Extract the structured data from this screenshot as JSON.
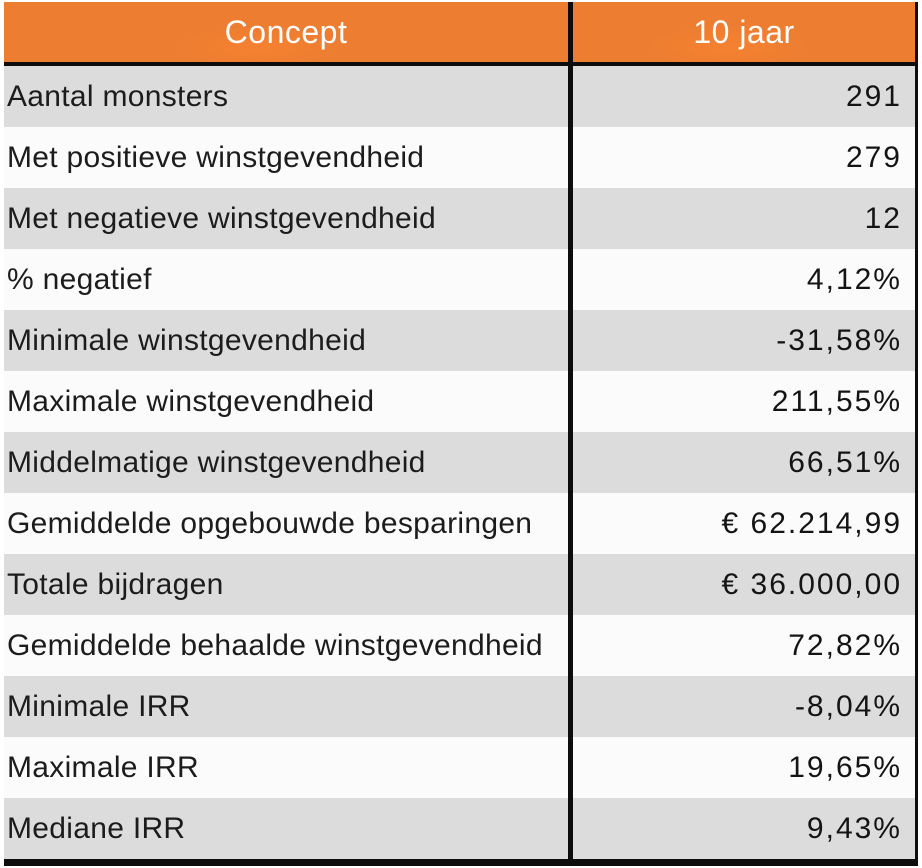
{
  "table": {
    "header": {
      "concept": "Concept",
      "period": "10 jaar"
    },
    "rows": [
      {
        "concept": "Aantal monsters",
        "value": "291"
      },
      {
        "concept": "Met positieve winstgevendheid",
        "value": "279"
      },
      {
        "concept": "Met negatieve winstgevendheid",
        "value": "12"
      },
      {
        "concept": "% negatief",
        "value": "4,12%"
      },
      {
        "concept": "Minimale winstgevendheid",
        "value": "-31,58%"
      },
      {
        "concept": "Maximale winstgevendheid",
        "value": "211,55%"
      },
      {
        "concept": "Middelmatige winstgevendheid",
        "value": "66,51%"
      },
      {
        "concept": "Gemiddelde opgebouwde besparingen",
        "value": "€ 62.214,99"
      },
      {
        "concept": "Totale bijdragen",
        "value": "€ 36.000,00"
      },
      {
        "concept": "Gemiddelde behaalde winstgevendheid",
        "value": "72,82%"
      },
      {
        "concept": "Minimale IRR",
        "value": "-8,04%"
      },
      {
        "concept": "Maximale IRR",
        "value": "19,65%"
      },
      {
        "concept": "Mediane IRR",
        "value": "9,43%"
      }
    ]
  },
  "colors": {
    "header_bg": "#ed7d31",
    "header_text": "#ffffff",
    "row_alt_bg": "#dcdcdc",
    "row_bg": "#fbfbfb",
    "border": "#0d0d0d",
    "text": "#1c1c1c"
  },
  "chart_data": {
    "type": "table",
    "title": "",
    "columns": [
      "Concept",
      "10 jaar"
    ],
    "rows": [
      [
        "Aantal monsters",
        "291"
      ],
      [
        "Met positieve winstgevendheid",
        "279"
      ],
      [
        "Met negatieve winstgevendheid",
        "12"
      ],
      [
        "% negatief",
        "4,12%"
      ],
      [
        "Minimale winstgevendheid",
        "-31,58%"
      ],
      [
        "Maximale winstgevendheid",
        "211,55%"
      ],
      [
        "Middelmatige winstgevendheid",
        "66,51%"
      ],
      [
        "Gemiddelde opgebouwde besparingen",
        "€ 62.214,99"
      ],
      [
        "Totale bijdragen",
        "€ 36.000,00"
      ],
      [
        "Gemiddelde behaalde winstgevendheid",
        "72,82%"
      ],
      [
        "Minimale IRR",
        "-8,04%"
      ],
      [
        "Maximale IRR",
        "19,65%"
      ],
      [
        "Mediane IRR",
        "9,43%"
      ]
    ]
  }
}
